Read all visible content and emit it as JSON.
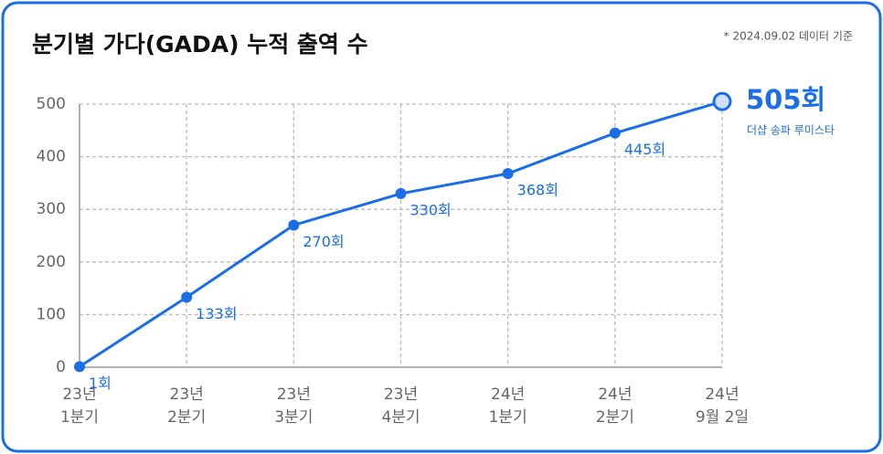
{
  "chart_data": {
    "type": "line",
    "title": "분기별 가다(GADA) 누적 출역 수",
    "note": "* 2024.09.02 데이터 기준",
    "annotation": "더샵 송파 루미스타",
    "categories": [
      "23년\n1분기",
      "23년\n2분기",
      "23년\n3분기",
      "23년\n4분기",
      "24년\n1분기",
      "24년\n2분기",
      "24년\n9월 2일"
    ],
    "values": [
      1,
      133,
      270,
      330,
      368,
      445,
      505
    ],
    "value_labels": [
      "1회",
      "133회",
      "270회",
      "330회",
      "368회",
      "445회",
      "505회"
    ],
    "color": "#1a6ee6",
    "ylim": [
      0,
      500
    ],
    "yticks": [
      0,
      100,
      200,
      300,
      400,
      500
    ],
    "grid": true
  }
}
